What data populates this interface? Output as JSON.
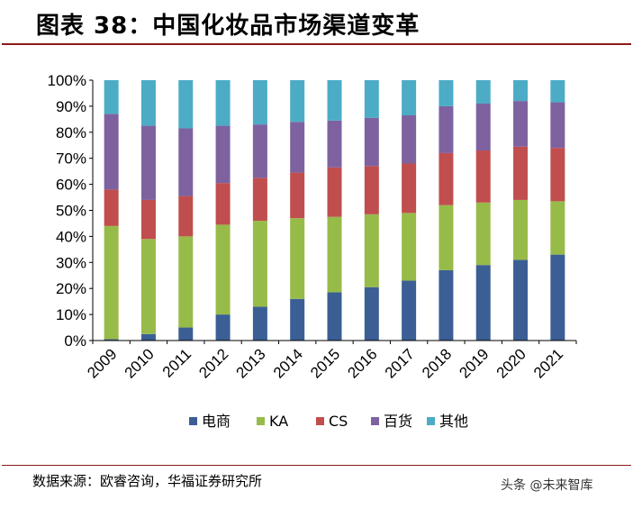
{
  "page": {
    "title": "图表 38：中国化妆品市场渠道变革",
    "source": "数据来源：欧睿咨询，华福证券研究所",
    "watermark": "头条 @未来智库"
  },
  "chart_data": {
    "type": "bar",
    "stacked": true,
    "categories": [
      "2009",
      "2010",
      "2011",
      "2012",
      "2013",
      "2014",
      "2015",
      "2016",
      "2017",
      "2018",
      "2019",
      "2020",
      "2021"
    ],
    "yticks": [
      "0%",
      "10%",
      "20%",
      "30%",
      "40%",
      "50%",
      "60%",
      "70%",
      "80%",
      "90%",
      "100%"
    ],
    "ylim": [
      0,
      100
    ],
    "grid": false,
    "legend_position": "bottom",
    "series": [
      {
        "name": "电商",
        "color": "#3b5f95",
        "values": [
          0.5,
          2.5,
          5,
          10,
          13,
          16,
          18.5,
          20.5,
          23,
          27,
          29,
          31,
          33
        ]
      },
      {
        "name": "KA",
        "color": "#97bb49",
        "values": [
          43.5,
          36.5,
          35,
          34.5,
          33,
          31,
          29,
          28,
          26,
          25,
          24,
          23,
          20.5
        ]
      },
      {
        "name": "CS",
        "color": "#c04e4e",
        "values": [
          14,
          15,
          15.5,
          16,
          16.5,
          17.5,
          19,
          18.5,
          19,
          20,
          20,
          20.5,
          20.5
        ]
      },
      {
        "name": "百货",
        "color": "#7e62a0",
        "values": [
          29,
          28.5,
          26,
          22,
          20.5,
          19.5,
          18,
          18.5,
          18.5,
          18,
          18,
          17.5,
          17.5
        ]
      },
      {
        "name": "其他",
        "color": "#4cacc6",
        "values": [
          13,
          17.5,
          18.5,
          17.5,
          17,
          16,
          15.5,
          14.5,
          13.5,
          10,
          9,
          8,
          8.5
        ]
      }
    ]
  }
}
